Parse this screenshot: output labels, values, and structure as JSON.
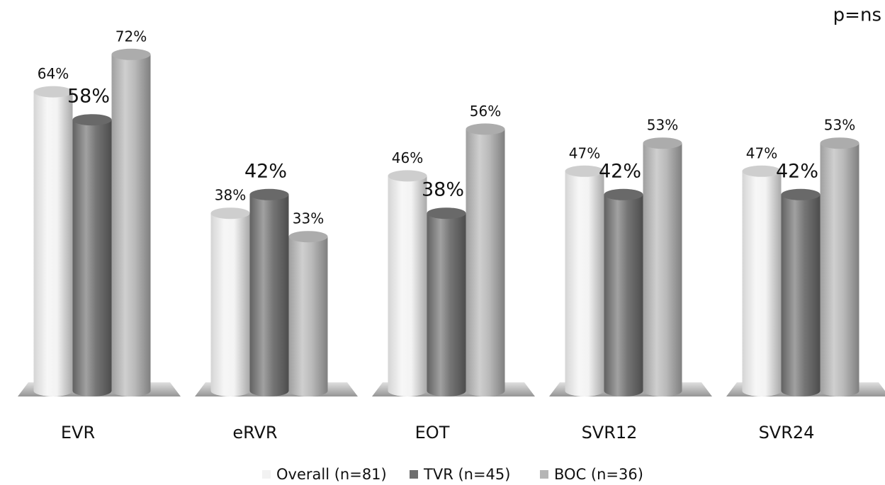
{
  "chart_data": {
    "type": "bar",
    "annotation": "p=ns",
    "categories": [
      "EVR",
      "eRVR",
      "EOT",
      "SVR12",
      "SVR24"
    ],
    "series": [
      {
        "name": "Overall (n=81)",
        "color": "#f2f2f2",
        "values": [
          64,
          38,
          46,
          47,
          47
        ],
        "value_labels": [
          "64%",
          "38%",
          "46%",
          "47%",
          "47%"
        ]
      },
      {
        "name": "TVR (n=45)",
        "color": "#6e6e6e",
        "values": [
          58,
          42,
          38,
          42,
          42
        ],
        "value_labels": [
          "58%",
          "42%",
          "38%",
          "42%",
          "42%"
        ]
      },
      {
        "name": "BOC (n=36)",
        "color": "#b5b5b5",
        "values": [
          72,
          33,
          56,
          53,
          53
        ],
        "value_labels": [
          "72%",
          "33%",
          "56%",
          "53%",
          "53%"
        ]
      }
    ]
  }
}
